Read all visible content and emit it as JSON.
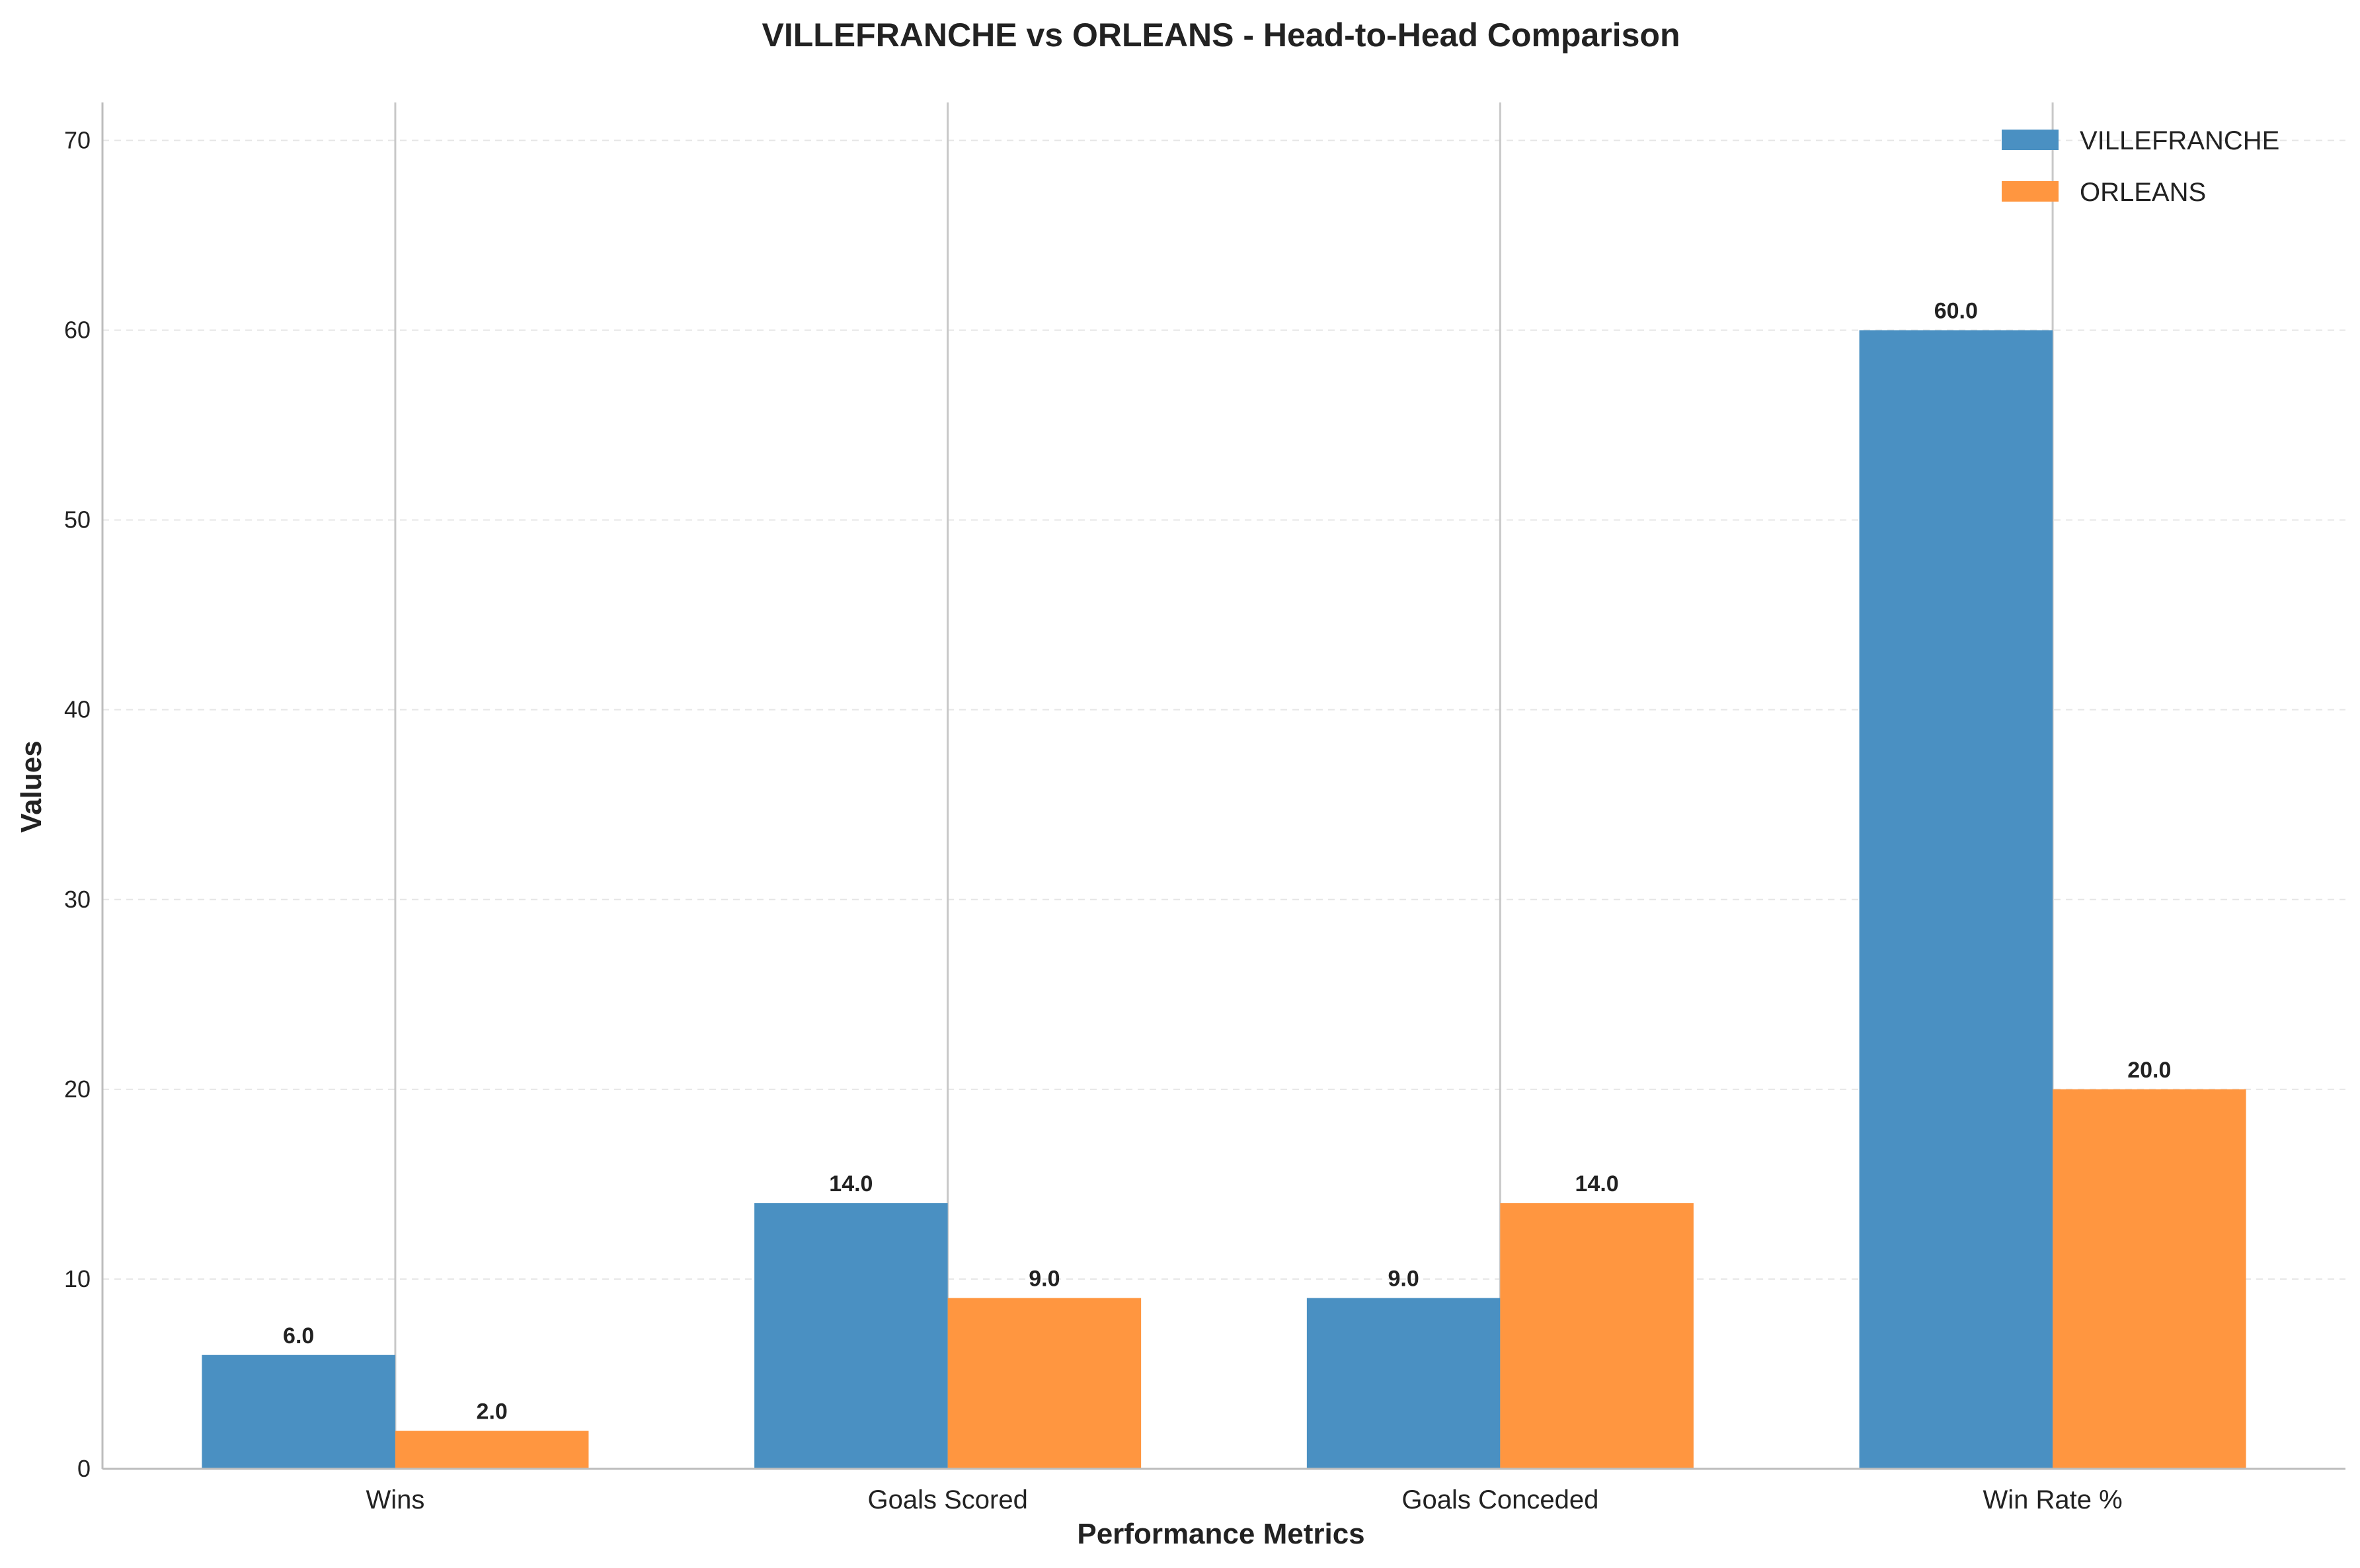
{
  "chart_data": {
    "type": "bar",
    "title": "VILLEFRANCHE vs ORLEANS - Head-to-Head Comparison",
    "xlabel": "Performance Metrics",
    "ylabel": "Values",
    "categories": [
      "Wins",
      "Goals Scored",
      "Goals Conceded",
      "Win Rate %"
    ],
    "series": [
      {
        "name": "VILLEFRANCHE",
        "color": "#4a90c2",
        "values": [
          6.0,
          14.0,
          9.0,
          60.0
        ]
      },
      {
        "name": "ORLEANS",
        "color": "#ff9640",
        "values": [
          2.0,
          9.0,
          14.0,
          20.0
        ]
      }
    ],
    "ylim": [
      0,
      72
    ],
    "yticks": [
      0,
      10,
      20,
      30,
      40,
      50,
      60,
      70
    ],
    "grid": "y-dashed",
    "legend_position": "top-right",
    "value_label_format": "one-decimal"
  }
}
